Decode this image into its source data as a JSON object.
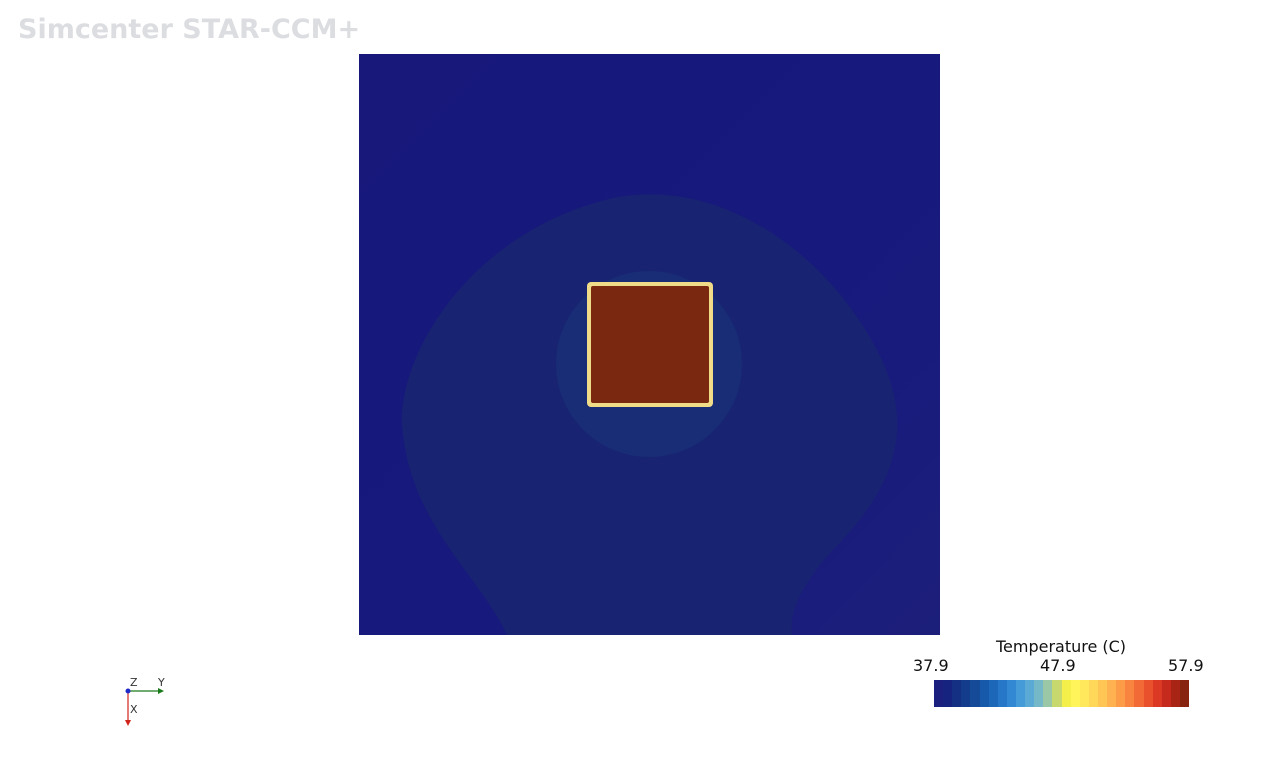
{
  "app": {
    "watermark": "Simcenter STAR-CCM+"
  },
  "scene": {
    "scalar_bar": {
      "title": "Temperature (C)",
      "min_label": "37.9",
      "mid_label": "47.9",
      "max_label": "57.9",
      "min": 37.9,
      "max": 57.9
    },
    "colormap": [
      "#1b1f7d",
      "#17247f",
      "#143083",
      "#143c8c",
      "#154a98",
      "#1658a9",
      "#1d67b8",
      "#2677c7",
      "#3288d2",
      "#459ad8",
      "#5aaad5",
      "#75b9c8",
      "#9ac8a7",
      "#c7d86e",
      "#f4ef4a",
      "#fff45a",
      "#ffe85c",
      "#ffd85a",
      "#ffc655",
      "#ffb24f",
      "#fd9c48",
      "#f8843f",
      "#f26b36",
      "#e9512d",
      "#db3924",
      "#c52a1d",
      "#a82516",
      "#862410"
    ],
    "colors": {
      "background_cold": "#17187a",
      "plume": "#182372",
      "inner_halo": "#182d75",
      "block": "#7b2810",
      "block_edge": "#f0dc88"
    },
    "triad": {
      "x_label": "X",
      "y_label": "Y",
      "z_label": "Z",
      "x_color": "#d0241b",
      "y_color": "#1a7a1a",
      "z_color": "#1f2cc9"
    }
  }
}
